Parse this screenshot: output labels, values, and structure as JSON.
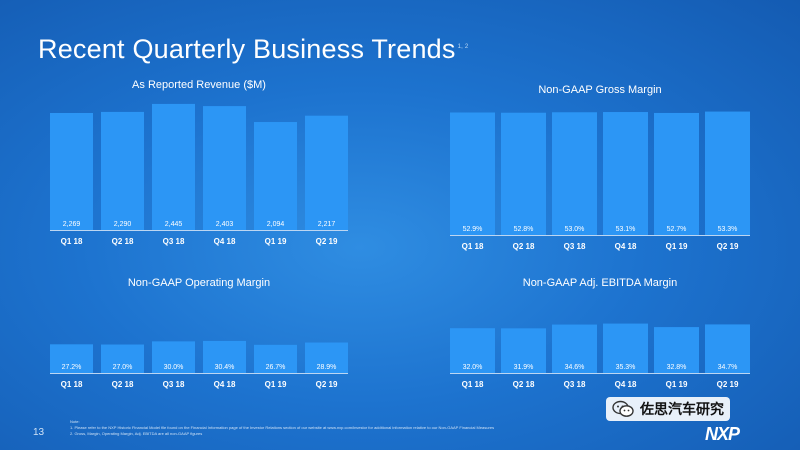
{
  "slide": {
    "title": "Recent Quarterly Business Trends",
    "title_superscript": "1, 2",
    "page_number": "13",
    "notes_heading": "Note:",
    "notes": [
      "1.   Please refer to the NXP Historic Financial Model file found on the Financial Information page of the Investor Relations section of our website at www.nxp.com/investor for additional information relative to our Non-GAAP Financial Measures",
      "2.   Gross, Margin, Operating Margin, Adj. EBITDA are all non-GAAP figures"
    ],
    "watermark_text": "佐思汽车研究",
    "logo_text": "NXP",
    "bar_color": "#2c96f5"
  },
  "chart_data": [
    {
      "type": "bar",
      "title": "As Reported Revenue ($M)",
      "categories": [
        "Q1 18",
        "Q2 18",
        "Q3 18",
        "Q4 18",
        "Q1 19",
        "Q2 19"
      ],
      "values": [
        2269,
        2290,
        2445,
        2403,
        2094,
        2217
      ],
      "labels": [
        "2,269",
        "2,290",
        "2,445",
        "2,403",
        "2,094",
        "2,217"
      ],
      "ylim": [
        0,
        2560
      ]
    },
    {
      "type": "bar",
      "title": "Non-GAAP Gross Margin",
      "categories": [
        "Q1 18",
        "Q2 18",
        "Q3 18",
        "Q4 18",
        "Q1 19",
        "Q2 19"
      ],
      "values": [
        52.9,
        52.8,
        53.0,
        53.1,
        52.7,
        53.3
      ],
      "labels": [
        "52.9%",
        "52.8%",
        "53.0%",
        "53.1%",
        "52.7%",
        "53.3%"
      ],
      "ylim": [
        0,
        57
      ]
    },
    {
      "type": "bar",
      "title": "Non-GAAP Operating Margin",
      "categories": [
        "Q1 18",
        "Q2 18",
        "Q3 18",
        "Q4 18",
        "Q1 19",
        "Q2 19"
      ],
      "values": [
        27.2,
        27.0,
        30.0,
        30.4,
        26.7,
        28.9
      ],
      "labels": [
        "27.2%",
        "27.0%",
        "30.0%",
        "30.4%",
        "26.7%",
        "28.9%"
      ],
      "ylim": [
        0,
        73
      ]
    },
    {
      "type": "bar",
      "title": "Non-GAAP Adj. EBITDA Margin",
      "categories": [
        "Q1 18",
        "Q2 18",
        "Q3 18",
        "Q4 18",
        "Q1 19",
        "Q2 19"
      ],
      "values": [
        32.0,
        31.9,
        34.6,
        35.3,
        32.8,
        34.7
      ],
      "labels": [
        "32.0%",
        "31.9%",
        "34.6%",
        "35.3%",
        "32.8%",
        "34.7%"
      ],
      "ylim": [
        0,
        55
      ]
    }
  ]
}
